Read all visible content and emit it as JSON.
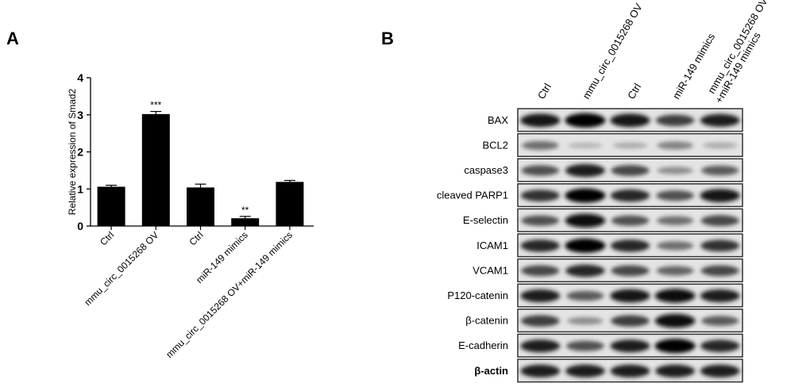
{
  "panel_a_label": "A",
  "panel_b_label": "B",
  "chart_data": [
    {
      "type": "bar",
      "title": "",
      "xlabel": "",
      "ylabel": "Relative expression of Smad2",
      "ylim": [
        0,
        4
      ],
      "yticks": [
        0,
        1,
        2,
        3,
        4
      ],
      "categories": [
        "Ctrl",
        "mmu_circ_0015268 OV",
        "Ctrl",
        "miR-149 mimics",
        "mmu_circ_0015268 OV+miR-149 mimics"
      ],
      "values": [
        1.06,
        3.02,
        1.04,
        0.21,
        1.19
      ],
      "errors": [
        0.04,
        0.07,
        0.09,
        0.05,
        0.04
      ],
      "annotations": [
        "",
        "***",
        "",
        "**",
        ""
      ],
      "bar_color": "#000000",
      "grid": false
    },
    {
      "type": "heatmap",
      "description_kind": "western blot",
      "lanes": [
        "Ctrl",
        "mmu_circ_0015268 OV",
        "Ctrl",
        "miR-149 mimics",
        "mmu_circ_0015268 OV\n+miR-149 mimics"
      ],
      "rows": [
        {
          "label": "BAX",
          "bold": false,
          "intensity": [
            0.9,
            1.0,
            0.9,
            0.7,
            0.85
          ]
        },
        {
          "label": "BCL2",
          "bold": false,
          "intensity": [
            0.45,
            0.1,
            0.15,
            0.35,
            0.15
          ]
        },
        {
          "label": "caspase3",
          "bold": false,
          "intensity": [
            0.6,
            0.85,
            0.65,
            0.3,
            0.55
          ]
        },
        {
          "label": "cleaved PARP1",
          "bold": false,
          "intensity": [
            0.75,
            1.0,
            0.8,
            0.6,
            0.9
          ]
        },
        {
          "label": "E-selectin",
          "bold": false,
          "intensity": [
            0.6,
            0.95,
            0.6,
            0.45,
            0.65
          ]
        },
        {
          "label": "ICAM1",
          "bold": false,
          "intensity": [
            0.8,
            1.0,
            0.8,
            0.45,
            0.75
          ]
        },
        {
          "label": "VCAM1",
          "bold": false,
          "intensity": [
            0.65,
            0.8,
            0.65,
            0.5,
            0.65
          ]
        },
        {
          "label": "P120-catenin",
          "bold": false,
          "intensity": [
            0.85,
            0.55,
            0.9,
            0.95,
            0.85
          ]
        },
        {
          "label": "β-catenin",
          "bold": false,
          "intensity": [
            0.7,
            0.3,
            0.7,
            0.95,
            0.55
          ]
        },
        {
          "label": "E-cadherin",
          "bold": false,
          "intensity": [
            0.85,
            0.6,
            0.85,
            1.0,
            0.8
          ]
        },
        {
          "label": "β-actin",
          "bold": true,
          "intensity": [
            0.85,
            0.85,
            0.85,
            0.85,
            0.85
          ]
        }
      ]
    }
  ]
}
